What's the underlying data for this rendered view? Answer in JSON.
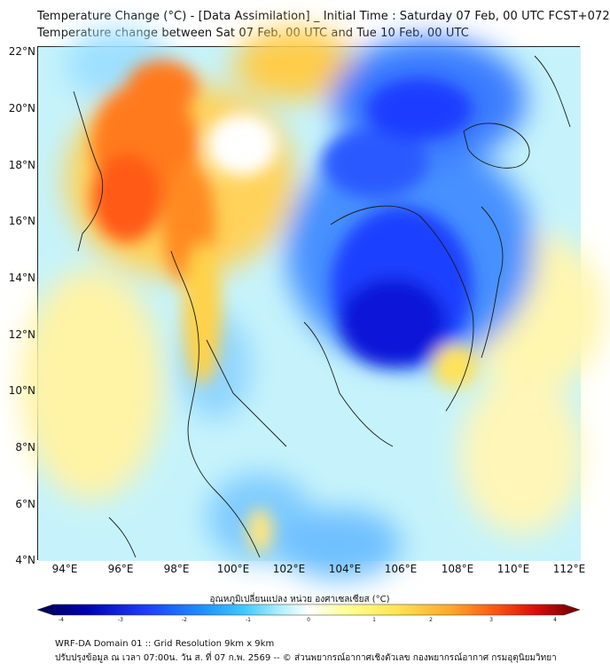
{
  "title": {
    "line1": "Temperature Change (°C) - [Data Assimilation] _ Initial Time : Saturday 07 Feb, 00 UTC FCST+072",
    "line2": "Temperature change between Sat 07 Feb, 00 UTC and Tue 10 Feb, 00 UTC"
  },
  "axes": {
    "lat_labels": [
      "22°N",
      "20°N",
      "18°N",
      "16°N",
      "14°N",
      "12°N",
      "10°N",
      "8°N",
      "6°N",
      "4°N"
    ],
    "lon_labels": [
      "94°E",
      "96°E",
      "98°E",
      "100°E",
      "102°E",
      "104°E",
      "106°E",
      "108°E",
      "110°E",
      "112°E"
    ]
  },
  "colorbar": {
    "label": "อุณหภูมิเปลี่ยนแปลง หน่วย องศาเซลเซียส (°C)",
    "ticks": [
      "-4",
      "-3",
      "-2",
      "-1",
      "0",
      "1",
      "2",
      "3",
      "4"
    ],
    "range": [
      -4,
      4
    ],
    "colors": [
      "#00004a",
      "#0000b4",
      "#1e3cff",
      "#1e8cff",
      "#3cc8ff",
      "#b4f0ff",
      "#ffffff",
      "#ffff96",
      "#ffe650",
      "#ffaa28",
      "#ff5a14",
      "#dc0a0a",
      "#640000"
    ]
  },
  "footer": {
    "line1": "WRF-DA Domain 01 :: Grid Resolution 9km x 9km",
    "line2": "ปรับปรุงข้อมูล ณ เวลา 07:00น. วัน ส. ที่ 07 ก.พ. 2569 -- © ส่วนพยากรณ์อากาศเชิงตัวเลข กองพยากรณ์อากาศ กรมอุตุนิยมวิทยา"
  }
}
